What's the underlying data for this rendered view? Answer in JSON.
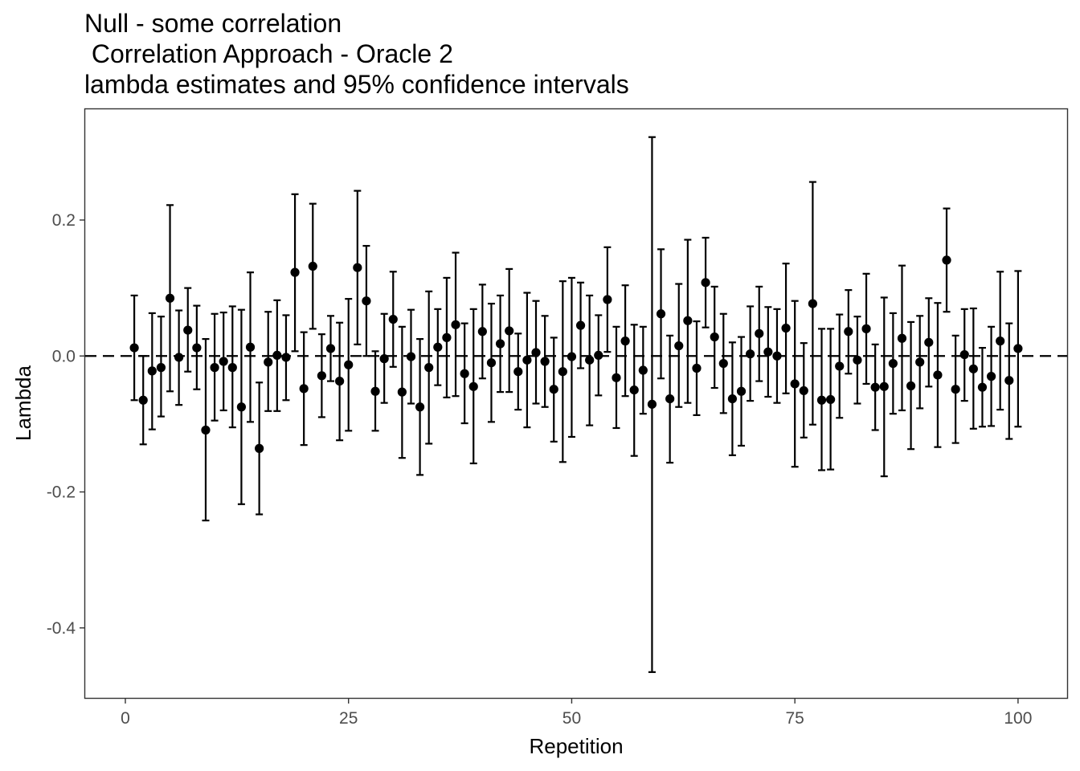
{
  "chart_data": {
    "type": "scatter",
    "title_lines": [
      "Null - some correlation",
      " Correlation Approach - Oracle 2",
      "lambda estimates and 95% confidence intervals"
    ],
    "xlabel": "Repetition",
    "ylabel": "Lambda",
    "xlim": [
      -4.5,
      105.5
    ],
    "ylim": [
      -0.503,
      0.363
    ],
    "x_ticks": [
      0,
      25,
      50,
      75,
      100
    ],
    "y_ticks": [
      -0.4,
      -0.2,
      0.0,
      0.2
    ],
    "x_tick_labels": [
      "0",
      "25",
      "50",
      "75",
      "100"
    ],
    "y_tick_labels": [
      "-0.4",
      "-0.2",
      "0.0",
      "0.2"
    ],
    "reference_line": {
      "y": 0,
      "style": "dashed"
    },
    "grid": false,
    "point_color": "#000000",
    "series": [
      {
        "x": [
          1,
          2,
          3,
          4,
          5,
          6,
          7,
          8,
          9,
          10,
          11,
          12,
          13,
          14,
          15,
          16,
          17,
          18,
          19,
          20,
          21,
          22,
          23,
          24,
          25,
          26,
          27,
          28,
          29,
          30,
          31,
          32,
          33,
          34,
          35,
          36,
          37,
          38,
          39,
          40,
          41,
          42,
          43,
          44,
          45,
          46,
          47,
          48,
          49,
          50,
          51,
          52,
          53,
          54,
          55,
          56,
          57,
          58,
          59,
          60,
          61,
          62,
          63,
          64,
          65,
          66,
          67,
          68,
          69,
          70,
          71,
          72,
          73,
          74,
          75,
          76,
          77,
          78,
          79,
          80,
          81,
          82,
          83,
          84,
          85,
          86,
          87,
          88,
          89,
          90,
          91,
          92,
          93,
          94,
          95,
          96,
          97,
          98,
          99,
          100
        ],
        "y": [
          0.012,
          -0.065,
          -0.022,
          -0.017,
          0.085,
          -0.002,
          0.038,
          0.012,
          -0.109,
          -0.017,
          -0.008,
          -0.017,
          -0.075,
          0.013,
          -0.136,
          -0.009,
          0.001,
          -0.002,
          0.123,
          -0.048,
          0.132,
          -0.029,
          0.011,
          -0.037,
          -0.013,
          0.13,
          0.081,
          -0.052,
          -0.004,
          0.054,
          -0.053,
          -0.001,
          -0.075,
          -0.017,
          0.013,
          0.027,
          0.046,
          -0.026,
          -0.045,
          0.036,
          -0.01,
          0.018,
          0.037,
          -0.023,
          -0.006,
          0.005,
          -0.008,
          -0.049,
          -0.023,
          -0.001,
          0.045,
          -0.006,
          0.001,
          0.083,
          -0.032,
          0.022,
          -0.05,
          -0.021,
          -0.071,
          0.062,
          -0.063,
          0.015,
          0.052,
          -0.018,
          0.108,
          0.028,
          -0.011,
          -0.063,
          -0.052,
          0.003,
          0.033,
          0.006,
          0.0,
          0.041,
          -0.041,
          -0.051,
          0.077,
          -0.065,
          -0.064,
          -0.015,
          0.036,
          -0.006,
          0.04,
          -0.046,
          -0.045,
          -0.011,
          0.026,
          -0.044,
          -0.009,
          0.02,
          -0.028,
          0.141,
          -0.049,
          0.002,
          -0.019,
          -0.046,
          -0.03,
          0.022,
          -0.036,
          0.011
        ],
        "ymin": [
          -0.065,
          -0.13,
          -0.108,
          -0.089,
          -0.052,
          -0.072,
          -0.023,
          -0.049,
          -0.242,
          -0.095,
          -0.08,
          -0.105,
          -0.218,
          -0.097,
          -0.233,
          -0.081,
          -0.081,
          -0.065,
          0.007,
          -0.131,
          0.04,
          -0.09,
          -0.037,
          -0.124,
          -0.11,
          0.017,
          0.0,
          -0.11,
          -0.069,
          -0.016,
          -0.15,
          -0.07,
          -0.175,
          -0.129,
          -0.043,
          -0.061,
          -0.059,
          -0.099,
          -0.158,
          -0.033,
          -0.097,
          -0.053,
          -0.053,
          -0.079,
          -0.105,
          -0.07,
          -0.075,
          -0.126,
          -0.156,
          -0.119,
          -0.018,
          -0.102,
          -0.058,
          0.006,
          -0.106,
          -0.059,
          -0.147,
          -0.085,
          -0.465,
          -0.033,
          -0.157,
          -0.075,
          -0.069,
          -0.087,
          0.042,
          -0.047,
          -0.084,
          -0.146,
          -0.132,
          -0.066,
          -0.037,
          -0.06,
          -0.069,
          -0.055,
          -0.163,
          -0.12,
          -0.101,
          -0.168,
          -0.167,
          -0.091,
          -0.026,
          -0.07,
          -0.041,
          -0.109,
          -0.177,
          -0.085,
          -0.08,
          -0.137,
          -0.077,
          -0.045,
          -0.134,
          0.065,
          -0.128,
          -0.066,
          -0.107,
          -0.104,
          -0.103,
          -0.079,
          -0.122,
          -0.104
        ],
        "ymax": [
          0.089,
          0.0,
          0.063,
          0.058,
          0.222,
          0.067,
          0.1,
          0.074,
          0.025,
          0.062,
          0.064,
          0.073,
          0.068,
          0.123,
          -0.039,
          0.065,
          0.082,
          0.06,
          0.238,
          0.035,
          0.224,
          0.032,
          0.059,
          0.049,
          0.084,
          0.243,
          0.162,
          0.007,
          0.062,
          0.124,
          0.043,
          0.068,
          0.025,
          0.095,
          0.069,
          0.115,
          0.152,
          0.048,
          0.069,
          0.105,
          0.077,
          0.089,
          0.128,
          0.033,
          0.093,
          0.081,
          0.059,
          0.027,
          0.11,
          0.115,
          0.108,
          0.089,
          0.06,
          0.16,
          0.043,
          0.104,
          0.046,
          0.043,
          0.322,
          0.157,
          0.03,
          0.106,
          0.171,
          0.051,
          0.174,
          0.102,
          0.062,
          0.02,
          0.028,
          0.073,
          0.102,
          0.072,
          0.069,
          0.136,
          0.081,
          0.019,
          0.256,
          0.04,
          0.04,
          0.061,
          0.097,
          0.058,
          0.121,
          0.017,
          0.086,
          0.063,
          0.133,
          0.05,
          0.059,
          0.085,
          0.078,
          0.217,
          0.03,
          0.069,
          0.07,
          0.012,
          0.043,
          0.124,
          0.048,
          0.125
        ]
      }
    ]
  }
}
